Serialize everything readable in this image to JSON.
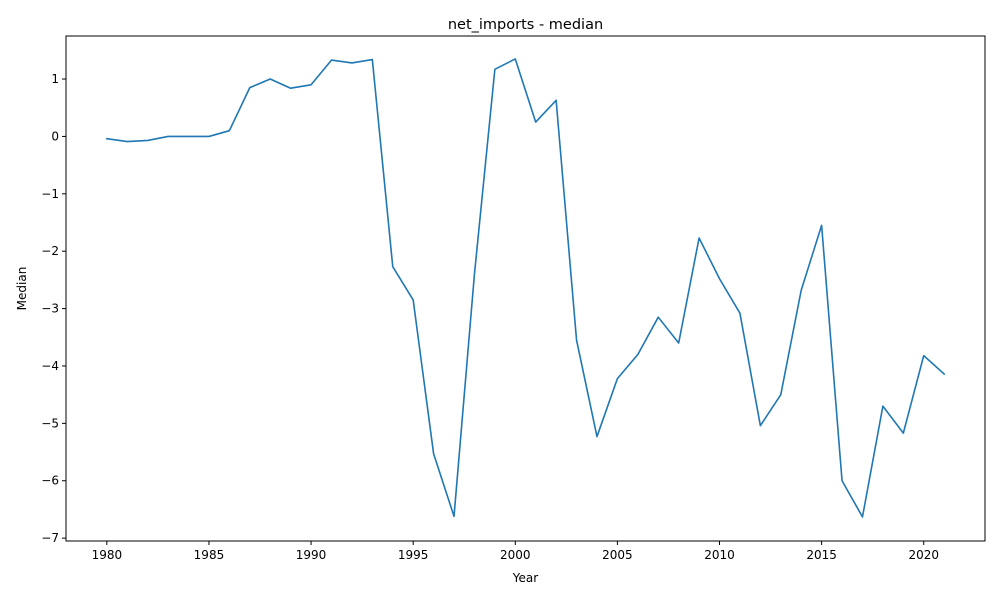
{
  "chart_data": {
    "type": "line",
    "title": "net_imports - median",
    "xlabel": "Year",
    "ylabel": "Median",
    "xlim": [
      1978,
      2023
    ],
    "ylim": [
      -7.05,
      1.75
    ],
    "xticks": [
      "1980",
      "1985",
      "1990",
      "1995",
      "2000",
      "2005",
      "2010",
      "2015",
      "2020"
    ],
    "yticks": [
      "1",
      "0",
      "−1",
      "−2",
      "−3",
      "−4",
      "−5",
      "−6",
      "−7"
    ],
    "grid": false,
    "series": [
      {
        "color": "#1f77b4",
        "x": [
          1980,
          1981,
          1982,
          1983,
          1984,
          1985,
          1986,
          1987,
          1988,
          1989,
          1990,
          1991,
          1992,
          1993,
          1994,
          1995,
          1996,
          1997,
          1998,
          1999,
          2000,
          2001,
          2002,
          2003,
          2004,
          2005,
          2006,
          2007,
          2008,
          2009,
          2010,
          2011,
          2012,
          2013,
          2014,
          2015,
          2016,
          2017,
          2018,
          2019,
          2020,
          2021
        ],
        "y": [
          -0.04,
          -0.09,
          -0.07,
          0.0,
          0.0,
          0.0,
          0.1,
          0.85,
          1.0,
          0.84,
          0.9,
          1.33,
          1.28,
          1.34,
          -2.27,
          -2.85,
          -5.53,
          -6.62,
          -2.4,
          1.17,
          1.35,
          0.25,
          0.63,
          -3.55,
          -5.23,
          -4.22,
          -3.8,
          -3.15,
          -3.6,
          -1.77,
          -2.48,
          -3.08,
          -5.04,
          -4.5,
          -2.68,
          -1.55,
          -6.0,
          -6.63,
          -4.7,
          -5.17,
          -3.82,
          -4.14
        ]
      }
    ]
  }
}
